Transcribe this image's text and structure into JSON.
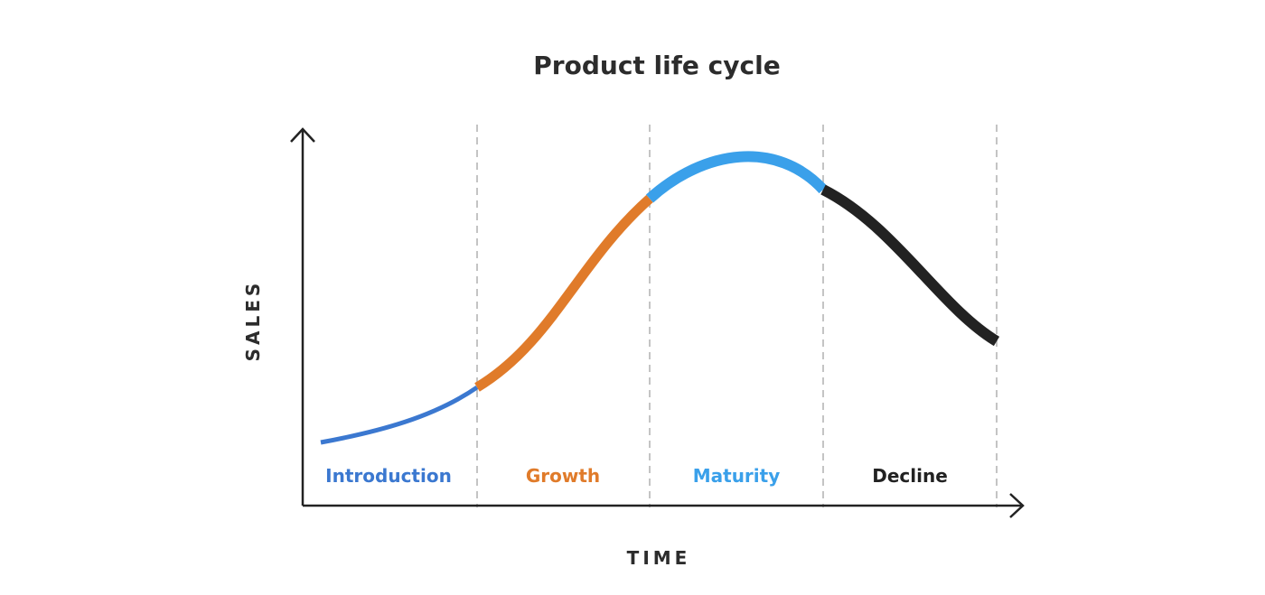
{
  "title": "Product life cycle",
  "axes": {
    "x_label": "TIME",
    "y_label": "SALES"
  },
  "stages": [
    {
      "label": "Introduction",
      "color": "#3b78d0"
    },
    {
      "label": "Growth",
      "color": "#e07b2a"
    },
    {
      "label": "Maturity",
      "color": "#3aa0ea"
    },
    {
      "label": "Decline",
      "color": "#222222"
    }
  ],
  "colors": {
    "axis": "#222222",
    "divider": "#c4c4c4",
    "text": "#2c2c2c"
  }
}
